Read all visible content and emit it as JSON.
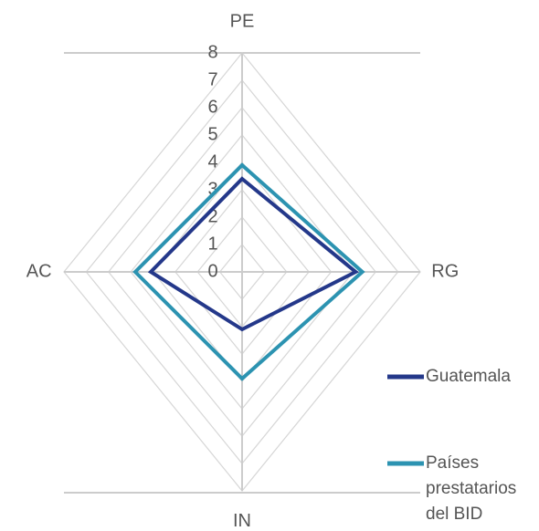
{
  "chart_data": {
    "type": "radar",
    "categories": [
      "PE",
      "RG",
      "IN",
      "AC"
    ],
    "series": [
      {
        "name": "Guatemala",
        "color": "#24388a",
        "values": [
          3.4,
          5.1,
          2.1,
          4.1
        ]
      },
      {
        "name": "Países prestatarios del BID",
        "color": "#2c93b1",
        "values": [
          3.9,
          5.4,
          3.9,
          4.8
        ]
      }
    ],
    "rlim": [
      0,
      8
    ],
    "rticks": [
      0,
      1,
      2,
      3,
      4,
      5,
      6,
      7,
      8
    ],
    "grid": true,
    "legend": "lower right"
  }
}
